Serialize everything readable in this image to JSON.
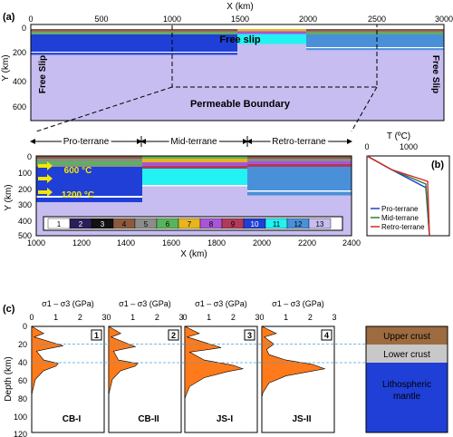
{
  "panel_labels": {
    "a": "(a)",
    "b": "(b)",
    "c": "(c)"
  },
  "top_model": {
    "x_axis_title": "X (km)",
    "x_ticks": [
      "0",
      "500",
      "1000",
      "1500",
      "2000",
      "2500",
      "3000"
    ],
    "y_axis_title": "Y (km)",
    "y_ticks": [
      "0",
      "200",
      "400",
      "600"
    ],
    "free_slip_top": "Free slip",
    "free_slip_left": "Free Slip",
    "free_slip_right": "Free Slip",
    "bottom_boundary": "Permeable Boundary"
  },
  "zoom_model": {
    "terranes": [
      "Pro-terrane",
      "Mid-terrane",
      "Retro-terrane"
    ],
    "iso_600": "600 °C",
    "iso_1200": "1200 °C",
    "x_axis_title": "X (km)",
    "x_ticks": [
      "1000",
      "1200",
      "1400",
      "1600",
      "1800",
      "2000",
      "2200",
      "2400"
    ],
    "y_axis_title": "Y (km)",
    "y_ticks": [
      "0",
      "100",
      "200",
      "300",
      "400",
      "500"
    ],
    "legend": [
      {
        "label": "1",
        "color": "#ffffff"
      },
      {
        "label": "2",
        "color": "#2b1e5a"
      },
      {
        "label": "3",
        "color": "#111111"
      },
      {
        "label": "4",
        "color": "#8b5a3c"
      },
      {
        "label": "5",
        "color": "#8c8c8c"
      },
      {
        "label": "6",
        "color": "#58b45a"
      },
      {
        "label": "7",
        "color": "#e8b420"
      },
      {
        "label": "8",
        "color": "#a855d6"
      },
      {
        "label": "9",
        "color": "#b03a5a"
      },
      {
        "label": "10",
        "color": "#1f3fd6"
      },
      {
        "label": "11",
        "color": "#22f2f2"
      },
      {
        "label": "12",
        "color": "#4a90d9"
      },
      {
        "label": "13",
        "color": "#c7bdf0"
      }
    ]
  },
  "geotherm": {
    "title": "T (ºC)",
    "x_ticks": [
      "0",
      "1000"
    ],
    "series": [
      {
        "name": "Pro-terrane",
        "color": "#1f3fd6"
      },
      {
        "name": "Mid-terrane",
        "color": "#2e7d32"
      },
      {
        "name": "Retro-terrane",
        "color": "#d62828"
      }
    ]
  },
  "strength": {
    "x_axis_title": "σ1 – σ3 (GPa)",
    "x_ticks": [
      "0",
      "1",
      "2",
      "3"
    ],
    "y_axis_title": "Depth (km)",
    "y_ticks": [
      "0",
      "20",
      "40",
      "60",
      "80",
      "100",
      "120"
    ],
    "panels": [
      {
        "num": "1",
        "name": "CB-I"
      },
      {
        "num": "2",
        "name": "CB-II"
      },
      {
        "num": "3",
        "name": "JS-I"
      },
      {
        "num": "4",
        "name": "JS-II"
      }
    ],
    "layers": [
      {
        "label": "Upper crust",
        "color": "#9c6b3f"
      },
      {
        "label": "Lower crust",
        "color": "#c8c8c8"
      },
      {
        "label": "Lithospheric mantle",
        "color": "#1f3fd6"
      }
    ]
  },
  "colors": {
    "mantle": "#c7bdf0",
    "strength_fill": "#ff7a1a"
  }
}
